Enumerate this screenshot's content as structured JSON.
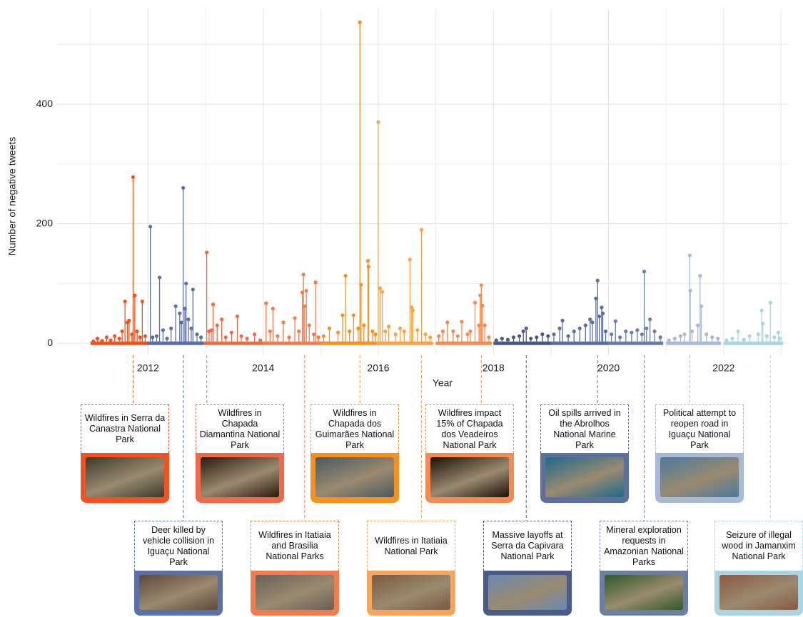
{
  "chart_data": {
    "type": "lollipop",
    "x_label": "Year",
    "y_label": "Number of negative tweets",
    "xlim": [
      2010.42,
      2023.13
    ],
    "xticks": [
      2012,
      2014,
      2016,
      2018,
      2020,
      2022
    ],
    "xminor": [
      2011,
      2013,
      2015,
      2017,
      2019,
      2021,
      2023
    ],
    "ylim": [
      -20,
      560
    ],
    "yticks": [
      0,
      200,
      400
    ],
    "yminor": [
      100,
      300,
      500
    ],
    "grid": true,
    "series": [
      {
        "color": "#f4511e",
        "x": [
          2011.05,
          2011.12,
          2011.2,
          2011.28,
          2011.35,
          2011.42,
          2011.5,
          2011.55,
          2011.6,
          2011.64,
          2011.67,
          2011.72,
          2011.74,
          2011.77,
          2011.81,
          2011.86,
          2011.9,
          2011.95
        ],
        "values": [
          3,
          8,
          4,
          10,
          5,
          12,
          8,
          20,
          70,
          35,
          38,
          15,
          278,
          80,
          20,
          10,
          70,
          12
        ]
      },
      {
        "color": "#5b6fa8",
        "x": [
          2012.04,
          2012.08,
          2012.15,
          2012.2,
          2012.26,
          2012.33,
          2012.4,
          2012.48,
          2012.55,
          2012.58,
          2012.61,
          2012.64,
          2012.66,
          2012.7,
          2012.75,
          2012.78,
          2012.85,
          2012.92
        ],
        "values": [
          195,
          10,
          12,
          110,
          22,
          8,
          25,
          62,
          50,
          35,
          260,
          58,
          100,
          40,
          25,
          90,
          15,
          10
        ]
      },
      {
        "color": "#f06a4a",
        "x": [
          2013.02,
          2013.06,
          2013.1,
          2013.13,
          2013.2,
          2013.28,
          2013.35,
          2013.45,
          2013.55,
          2013.62,
          2013.72,
          2013.85,
          2013.95
        ],
        "values": [
          152,
          20,
          22,
          65,
          30,
          40,
          10,
          18,
          45,
          12,
          8,
          15,
          5
        ]
      },
      {
        "color": "#f47c4c",
        "x": [
          2014.05,
          2014.12,
          2014.17,
          2014.25,
          2014.35,
          2014.45,
          2014.55,
          2014.62,
          2014.68,
          2014.7,
          2014.72,
          2014.75,
          2014.8,
          2014.88,
          2014.91,
          2014.96
        ],
        "values": [
          67,
          20,
          58,
          12,
          35,
          10,
          42,
          20,
          85,
          115,
          62,
          88,
          30,
          15,
          102,
          10
        ]
      },
      {
        "color": "#f7901e",
        "x": [
          2015.05,
          2015.15,
          2015.3,
          2015.38,
          2015.43,
          2015.5,
          2015.57,
          2015.65,
          2015.68,
          2015.7,
          2015.75,
          2015.82,
          2015.83,
          2015.9,
          2015.95
        ],
        "values": [
          12,
          25,
          18,
          47,
          113,
          20,
          47,
          25,
          537,
          98,
          30,
          138,
          128,
          20,
          15
        ]
      },
      {
        "color": "#f9a24a",
        "x": [
          2016.0,
          2016.03,
          2016.07,
          2016.12,
          2016.18,
          2016.3,
          2016.38,
          2016.45,
          2016.55,
          2016.58,
          2016.6,
          2016.68,
          2016.75,
          2016.82,
          2016.9
        ],
        "values": [
          370,
          92,
          86,
          20,
          28,
          15,
          25,
          20,
          140,
          60,
          55,
          22,
          190,
          15,
          10
        ]
      },
      {
        "color": "#f58a50",
        "x": [
          2017.05,
          2017.12,
          2017.2,
          2017.3,
          2017.38,
          2017.45,
          2017.55,
          2017.6,
          2017.68,
          2017.75,
          2017.77,
          2017.79,
          2017.81,
          2017.85,
          2017.92
        ],
        "values": [
          12,
          20,
          35,
          20,
          12,
          36,
          15,
          20,
          68,
          30,
          80,
          97,
          63,
          30,
          10
        ]
      },
      {
        "color": "#4a5b8a",
        "x": [
          2018.05,
          2018.15,
          2018.25,
          2018.35,
          2018.45,
          2018.52,
          2018.57,
          2018.65,
          2018.75,
          2018.85,
          2018.95
        ],
        "values": [
          5,
          8,
          6,
          10,
          12,
          20,
          25,
          8,
          10,
          15,
          12
        ]
      },
      {
        "color": "#5c6f9e",
        "x": [
          2019.05,
          2019.15,
          2019.2,
          2019.3,
          2019.4,
          2019.5,
          2019.6,
          2019.68,
          2019.72,
          2019.78,
          2019.81,
          2019.84,
          2019.88,
          2019.9,
          2019.95
        ],
        "values": [
          15,
          25,
          38,
          12,
          20,
          25,
          30,
          40,
          35,
          75,
          105,
          45,
          60,
          50,
          20
        ]
      },
      {
        "color": "#6b7fa5",
        "x": [
          2020.05,
          2020.12,
          2020.2,
          2020.3,
          2020.4,
          2020.5,
          2020.58,
          2020.62,
          2020.66,
          2020.72,
          2020.8,
          2020.9
        ],
        "values": [
          15,
          37,
          10,
          20,
          18,
          22,
          15,
          120,
          25,
          40,
          20,
          10
        ]
      },
      {
        "color": "#a8b8d8",
        "x": [
          2021.05,
          2021.15,
          2021.25,
          2021.32,
          2021.41,
          2021.42,
          2021.45,
          2021.55,
          2021.59,
          2021.61,
          2021.7,
          2021.8,
          2021.9
        ],
        "values": [
          5,
          8,
          12,
          15,
          147,
          88,
          20,
          30,
          113,
          62,
          15,
          10,
          8
        ]
      },
      {
        "color": "#a9d4e3",
        "x": [
          2022.05,
          2022.15,
          2022.25,
          2022.35,
          2022.45,
          2022.6,
          2022.66,
          2022.68,
          2022.75,
          2022.81,
          2022.88,
          2022.95,
          2022.98
        ],
        "values": [
          5,
          8,
          20,
          6,
          12,
          15,
          55,
          33,
          12,
          68,
          10,
          18,
          8
        ]
      }
    ],
    "annotations": [
      {
        "label": "Wildfires in Serra da Canastra National Park",
        "x": 2011.74,
        "color": "#f4511e"
      },
      {
        "label": "Deer killed by vehicle collision  in Iguaçu National Park",
        "x": 2012.61,
        "color": "#5b6fa8"
      },
      {
        "label": "Wildfires in Chapada Diamantina National Park",
        "x": 2013.02,
        "color": "#f06a4a"
      },
      {
        "label": "Wildfires in Itatiaia and Brasilia National Parks",
        "x": 2014.72,
        "color": "#f47c4c"
      },
      {
        "label": "Wildfires in Chapada dos Guimarães National Park",
        "x": 2015.68,
        "color": "#f7901e"
      },
      {
        "label": "Wildfires in Itatiaia National Park",
        "x": 2016.75,
        "color": "#f6a55a"
      },
      {
        "label": "Wildfires impact 15% of Chapada dos Veadeiros National Park",
        "x": 2017.79,
        "color": "#f58a50"
      },
      {
        "label": "Massive layoffs at Serra da Capivara National Park",
        "x": 2018.57,
        "color": "#4a5b8a"
      },
      {
        "label": "Oil spills arrived in the Abrolhos National Marine Park",
        "x": 2019.81,
        "color": "#5c6f9e"
      },
      {
        "label": "Mineral exploration requests in Amazonian National Parks",
        "x": 2020.62,
        "color": "#6b7fa5"
      },
      {
        "label": "Political attempt to reopen road in Iguaçu National Park",
        "x": 2021.41,
        "color": "#a8b8d8"
      },
      {
        "label": "Seizure of illegal wood in Jamanxim National Park",
        "x": 2022.81,
        "color": "#a9d4e3"
      }
    ]
  }
}
